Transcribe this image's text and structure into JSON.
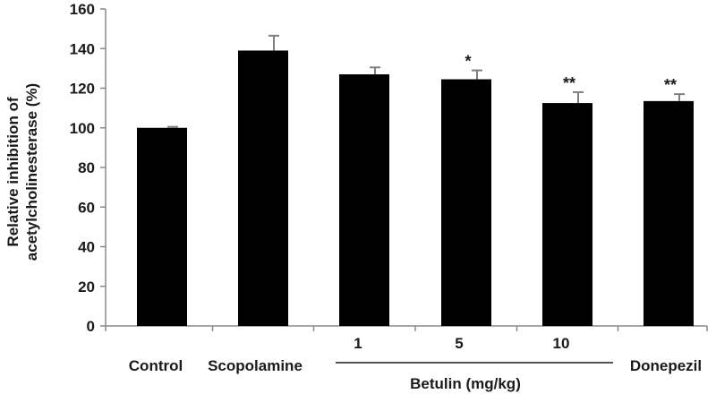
{
  "chart_data": {
    "type": "bar",
    "categories": [
      "Control",
      "Scopolamine",
      "1",
      "5",
      "10",
      "Donepezil"
    ],
    "values": [
      100,
      139,
      127,
      124.5,
      112.5,
      113.5
    ],
    "errors": [
      0.5,
      7.5,
      3.5,
      4.5,
      5.5,
      3.5
    ],
    "significance": [
      "",
      "",
      "",
      "*",
      "**",
      "**"
    ],
    "group_label": {
      "text": "Betulin (mg/kg)",
      "spans": [
        "1",
        "5",
        "10"
      ]
    },
    "ylabel_lines": [
      "Relative inhibition of",
      "acetylcholinesterase (%)"
    ],
    "ylim": [
      0,
      160
    ],
    "yticks": [
      0,
      20,
      40,
      60,
      80,
      100,
      120,
      140,
      160
    ],
    "bar_color": "#000000",
    "error_color": "#7f7f7f",
    "grid": false,
    "legend": "none"
  }
}
